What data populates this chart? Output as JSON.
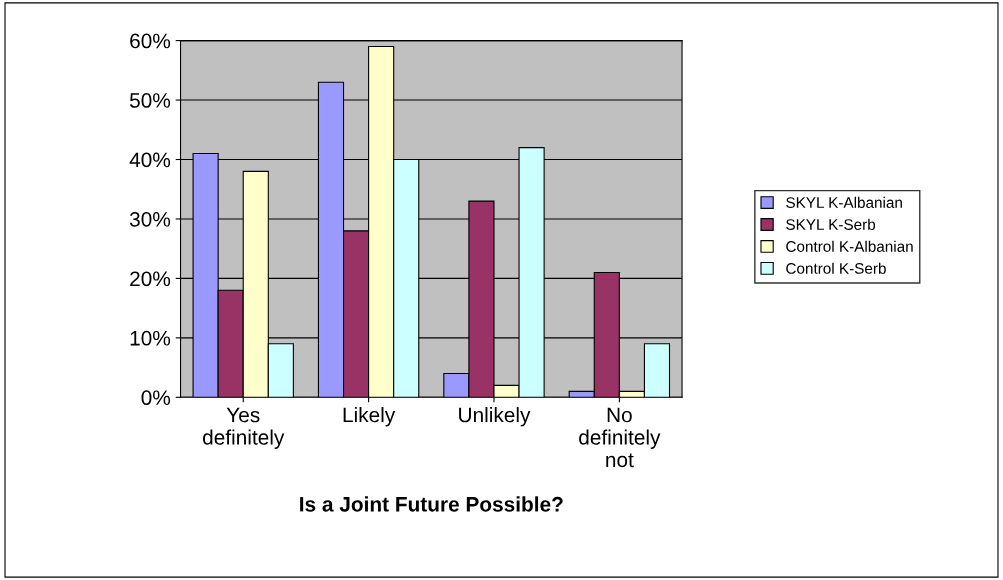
{
  "chart_data": {
    "type": "bar",
    "xlabel": "Is a Joint Future Possible?",
    "categories": [
      "Yes\ndefinitely",
      "Likely",
      "Unlikely",
      "No\ndefinitely\nnot"
    ],
    "series": [
      {
        "name": "SKYL K-Albanian",
        "color": "#9999ff",
        "values": [
          41,
          53,
          4,
          1
        ]
      },
      {
        "name": "SKYL K-Serb",
        "color": "#993366",
        "values": [
          18,
          28,
          33,
          21
        ]
      },
      {
        "name": "Control K-Albanian",
        "color": "#ffffcc",
        "values": [
          38,
          59,
          2,
          1
        ]
      },
      {
        "name": "Control K-Serb",
        "color": "#ccffff",
        "values": [
          9,
          40,
          42,
          9
        ]
      }
    ],
    "ylim": [
      0,
      60
    ],
    "yticks": [
      {
        "value": 0,
        "label": "0%"
      },
      {
        "value": 10,
        "label": "10%"
      },
      {
        "value": 20,
        "label": "20%"
      },
      {
        "value": 30,
        "label": "30%"
      },
      {
        "value": 40,
        "label": "40%"
      },
      {
        "value": 50,
        "label": "50%"
      },
      {
        "value": 60,
        "label": "60%"
      }
    ],
    "grid": "y",
    "legend": "right"
  }
}
